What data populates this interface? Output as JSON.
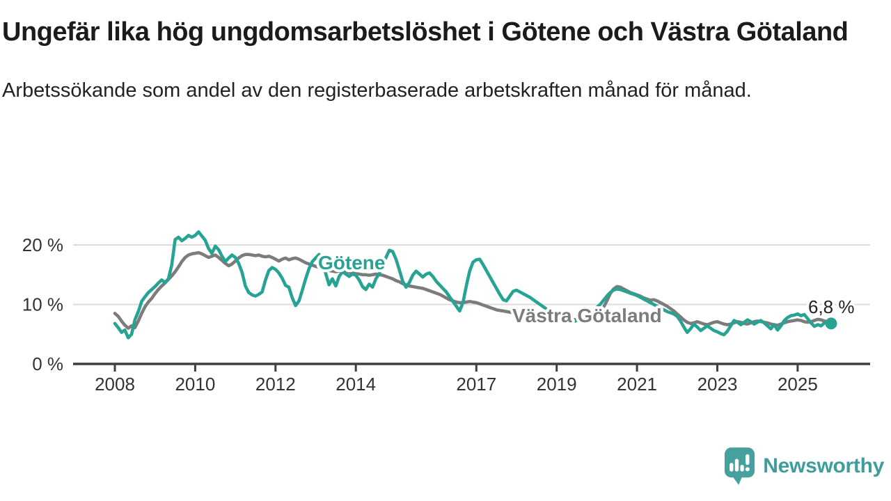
{
  "header": {
    "title": "Ungefär lika hög ungdomsarbetslöshet i Götene och Västra Götaland",
    "subtitle": "Arbetssökande som andel av den registerbaserade arbetskraften månad för månad."
  },
  "chart_data": {
    "type": "line",
    "title": "Ungefär lika hög ungdomsarbetslöshet i Götene och Västra Götaland",
    "subtitle": "Arbetssökande som andel av den registerbaserade arbetskraften månad för månad.",
    "unit": "%",
    "x_start": {
      "year": 2008,
      "month": 1
    },
    "x_end": {
      "year": 2025,
      "month": 11
    },
    "x_ticks": [
      {
        "year": 2008,
        "label": "2008"
      },
      {
        "year": 2010,
        "label": "2010"
      },
      {
        "year": 2012,
        "label": "2012"
      },
      {
        "year": 2014,
        "label": "2014"
      },
      {
        "year": 2017,
        "label": "2017"
      },
      {
        "year": 2019,
        "label": "2019"
      },
      {
        "year": 2021,
        "label": "2021"
      },
      {
        "year": 2023,
        "label": "2023"
      },
      {
        "year": 2025,
        "label": "2025"
      }
    ],
    "y_ticks": [
      {
        "value": 0,
        "label": "0 %"
      },
      {
        "value": 10,
        "label": "10 %"
      },
      {
        "value": 20,
        "label": "20 %"
      }
    ],
    "ylim": [
      0,
      23
    ],
    "grid": "horizontal",
    "legend_position": "inline-labels",
    "colors": {
      "gotene": "#27a394",
      "vastra_gotaland": "#7c7c7c",
      "grid": "#dcdcdc",
      "axis": "#3f3f3f",
      "tick_label": "#333333",
      "value_label": "#222222",
      "halo": "#ffffff"
    },
    "end_label": {
      "text": "6,8 %",
      "series": "Götene",
      "value": 6.8
    },
    "series": [
      {
        "name": "Västra Götaland",
        "color": "#7c7c7c",
        "values": [
          8.5,
          8.0,
          7.2,
          6.5,
          6.0,
          6.4,
          6.1,
          7.2,
          8.5,
          9.6,
          10.4,
          11.0,
          11.8,
          12.5,
          13.1,
          13.6,
          14.2,
          14.8,
          15.5,
          16.3,
          17.2,
          17.9,
          18.3,
          18.5,
          18.6,
          18.7,
          18.5,
          18.2,
          17.9,
          18.1,
          18.3,
          17.9,
          17.4,
          16.9,
          16.5,
          16.8,
          17.3,
          17.8,
          18.2,
          18.4,
          18.4,
          18.3,
          18.2,
          18.3,
          18.1,
          18.0,
          18.1,
          17.9,
          17.6,
          17.3,
          17.6,
          17.8,
          17.5,
          17.7,
          17.8,
          17.6,
          17.3,
          17.0,
          16.8,
          16.6,
          16.4,
          16.2,
          16.0,
          15.8,
          15.7,
          15.6,
          15.5,
          15.6,
          15.7,
          15.5,
          15.4,
          15.3,
          15.2,
          15.1,
          15.0,
          15.0,
          14.9,
          15.0,
          15.1,
          15.0,
          14.9,
          14.7,
          14.5,
          14.3,
          14.0,
          13.8,
          13.5,
          13.3,
          13.1,
          13.0,
          12.9,
          12.8,
          12.7,
          12.5,
          12.3,
          12.1,
          11.9,
          11.7,
          11.4,
          11.1,
          10.8,
          10.6,
          10.4,
          10.3,
          10.3,
          10.4,
          10.5,
          10.4,
          10.3,
          10.1,
          9.9,
          9.7,
          9.5,
          9.3,
          9.1,
          9.0,
          8.9,
          8.8,
          8.7,
          8.6,
          8.4,
          8.3,
          8.2,
          8.1,
          8.0,
          7.9,
          7.8,
          7.7,
          7.7,
          7.6,
          7.6,
          7.5,
          7.5,
          7.4,
          7.4,
          7.3,
          7.3,
          7.4,
          7.5,
          7.6,
          7.7,
          7.8,
          7.9,
          8.0,
          8.4,
          8.8,
          9.5,
          10.6,
          11.8,
          12.6,
          13.0,
          12.9,
          12.6,
          12.3,
          12.0,
          11.8,
          11.6,
          11.4,
          11.1,
          10.9,
          10.7,
          10.8,
          10.6,
          10.3,
          10.0,
          9.7,
          9.3,
          8.9,
          8.4,
          7.9,
          7.4,
          7.0,
          6.8,
          6.9,
          7.1,
          6.9,
          6.7,
          6.6,
          6.8,
          7.0,
          7.1,
          6.9,
          6.7,
          6.6,
          6.7,
          6.9,
          7.1,
          7.0,
          6.8,
          6.7,
          6.9,
          7.1,
          7.2,
          7.1,
          7.0,
          6.9,
          6.7,
          6.6,
          6.5,
          6.7,
          6.9,
          7.1,
          7.2,
          7.3,
          7.4,
          7.3,
          7.1,
          7.0,
          7.1,
          7.3,
          7.5,
          7.4,
          7.2,
          7.1,
          7.2
        ]
      },
      {
        "name": "Götene",
        "color": "#27a394",
        "values": [
          6.8,
          6.1,
          5.3,
          5.7,
          4.4,
          5.0,
          7.4,
          8.8,
          10.5,
          11.3,
          12.0,
          12.5,
          13.0,
          13.6,
          14.1,
          13.7,
          14.3,
          16.6,
          20.9,
          21.3,
          20.7,
          21.1,
          21.6,
          21.3,
          21.6,
          22.2,
          21.5,
          20.8,
          19.4,
          18.6,
          19.8,
          19.2,
          18.1,
          17.2,
          17.8,
          18.3,
          17.9,
          16.9,
          15.4,
          13.1,
          12.0,
          11.6,
          11.4,
          11.7,
          12.1,
          14.1,
          15.7,
          16.2,
          15.9,
          15.3,
          14.4,
          13.2,
          12.9,
          11.1,
          9.8,
          10.6,
          12.4,
          14.3,
          16.0,
          17.2,
          17.8,
          18.4,
          17.5,
          15.2,
          13.3,
          14.3,
          13.1,
          14.7,
          15.5,
          15.1,
          14.7,
          15.1,
          14.9,
          14.1,
          13.0,
          12.5,
          13.4,
          12.9,
          14.3,
          15.2,
          16.6,
          17.9,
          19.1,
          18.9,
          17.6,
          15.8,
          13.9,
          12.9,
          13.7,
          14.9,
          15.6,
          15.1,
          14.6,
          15.1,
          15.3,
          14.7,
          13.9,
          13.3,
          12.7,
          12.1,
          11.3,
          10.5,
          9.7,
          8.9,
          10.3,
          13.1,
          15.6,
          17.1,
          17.5,
          17.6,
          16.7,
          15.7,
          14.7,
          13.7,
          12.7,
          11.7,
          10.8,
          10.6,
          11.4,
          12.2,
          12.4,
          12.1,
          11.8,
          11.5,
          11.2,
          10.8,
          10.4,
          10.0,
          9.6,
          9.2,
          8.8,
          8.4,
          8.1,
          7.8,
          7.5,
          7.2,
          7.0,
          7.1,
          7.3,
          7.6,
          7.9,
          8.2,
          8.6,
          9.0,
          9.5,
          10.0,
          10.7,
          11.4,
          12.0,
          12.4,
          12.6,
          12.5,
          12.3,
          12.1,
          11.9,
          11.7,
          11.5,
          11.2,
          10.9,
          10.6,
          10.3,
          10.0,
          9.7,
          9.4,
          9.1,
          8.8,
          8.6,
          8.4,
          8.0,
          7.2,
          6.2,
          5.3,
          5.9,
          6.7,
          6.2,
          5.6,
          6.0,
          6.4,
          6.0,
          5.6,
          5.4,
          5.1,
          4.9,
          5.5,
          6.4,
          7.3,
          7.0,
          6.6,
          7.0,
          7.4,
          7.1,
          6.7,
          7.0,
          7.3,
          6.9,
          6.4,
          5.9,
          6.6,
          5.7,
          6.4,
          7.3,
          7.8,
          8.1,
          8.2,
          8.4,
          8.1,
          8.3,
          7.6,
          6.9,
          6.3,
          6.6,
          6.4,
          6.9,
          7.0,
          6.8
        ]
      }
    ]
  },
  "branding": {
    "logo_text": "Newsworthy",
    "logo_icon": "newsworthy-chart-bubble-icon",
    "color": "#46a09d"
  }
}
